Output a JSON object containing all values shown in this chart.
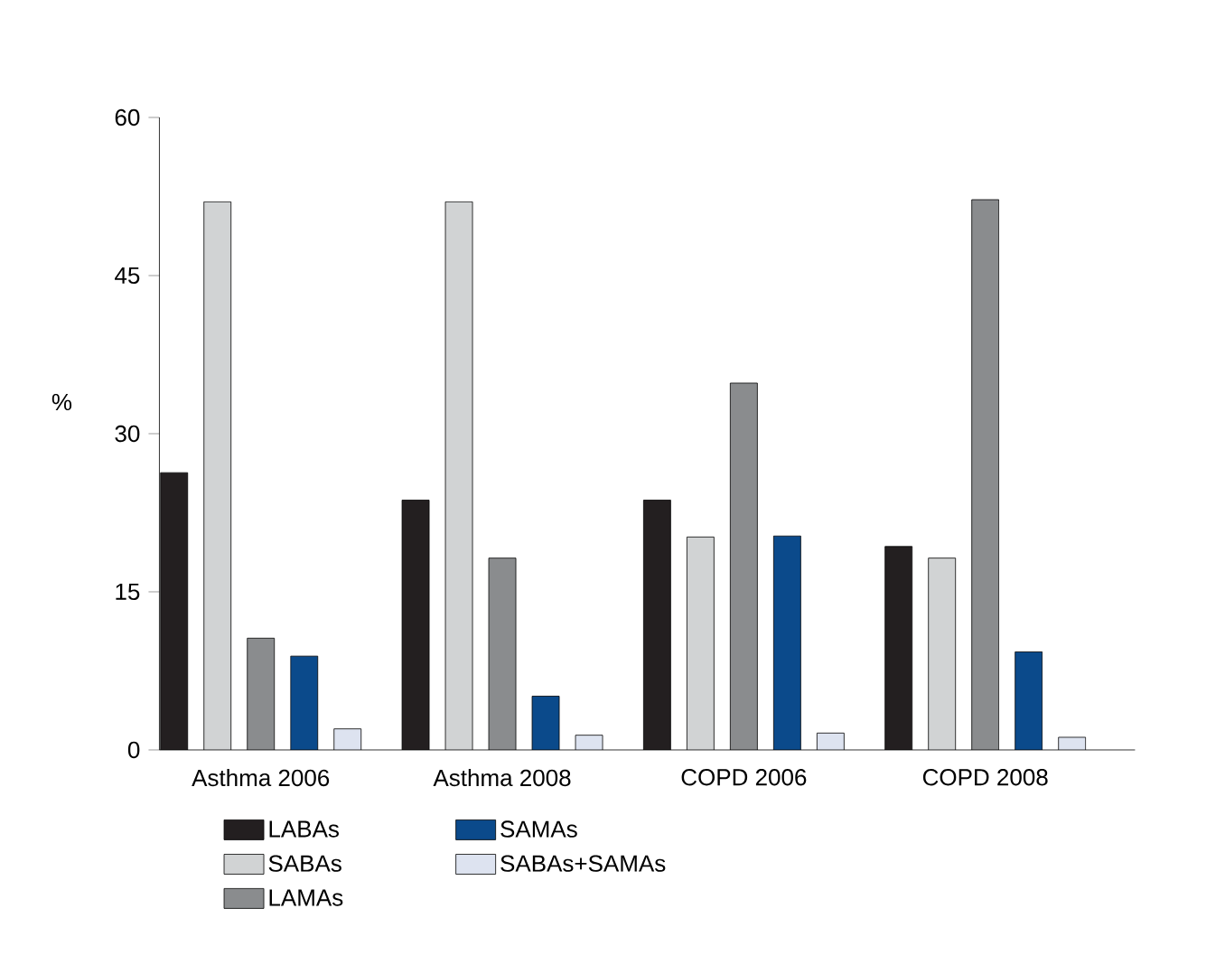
{
  "chart_data": {
    "type": "bar",
    "ylabel": "%",
    "categories": [
      "Asthma 2006",
      "Asthma 2008",
      "COPD 2006",
      "COPD 2008"
    ],
    "series": [
      {
        "name": "LABAs",
        "color": "#231f20",
        "values": [
          26.3,
          23.7,
          23.7,
          19.3
        ]
      },
      {
        "name": "SABAs",
        "color": "#d1d3d4",
        "values": [
          52,
          52,
          20.2,
          18.2
        ]
      },
      {
        "name": "LAMAs",
        "color": "#8a8c8e",
        "values": [
          10.6,
          18.2,
          34.8,
          52.2
        ]
      },
      {
        "name": "SAMAs",
        "color": "#0b4a8b",
        "values": [
          8.9,
          5.1,
          20.3,
          9.3
        ]
      },
      {
        "name": "SABAs+SAMAs",
        "color": "#dde3f0",
        "values": [
          2,
          1.4,
          1.6,
          1.2
        ]
      }
    ],
    "ylim": [
      0,
      60
    ],
    "yticks": [
      0,
      15,
      30,
      45,
      60
    ],
    "legend": "bottom",
    "grid": false
  }
}
